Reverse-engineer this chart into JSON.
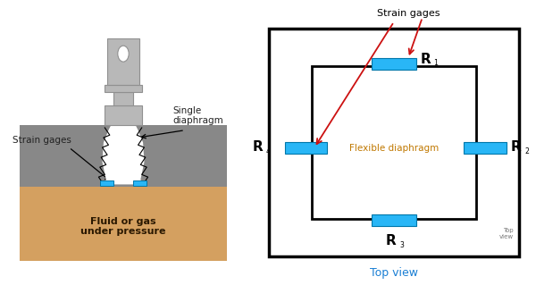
{
  "bg_color": "#ffffff",
  "left_panel": {
    "fluid_color": "#d4a060",
    "housing_color": "#888888",
    "body_color": "#b8b8b8",
    "body_edge": "#909090",
    "strain_gage_color": "#29b6f6",
    "strain_gage_edge": "#0077aa",
    "text_strain_gages": "Strain gages",
    "text_single_diaphragm": "Single\ndiaphragm",
    "text_fluid": "Fluid or gas\nunder pressure"
  },
  "right_panel": {
    "strain_gage_color": "#29b6f6",
    "strain_gage_edge": "#0077aa",
    "text_strain_gages": "Strain gages",
    "text_flexible": "Flexible diaphragm",
    "text_top_view_corner": "Top\nview",
    "text_top_view_bottom": "Top view",
    "top_view_color": "#1a7fd4",
    "flexible_color": "#c07800",
    "arrow_color": "#cc1111",
    "label_color": "#000000"
  }
}
